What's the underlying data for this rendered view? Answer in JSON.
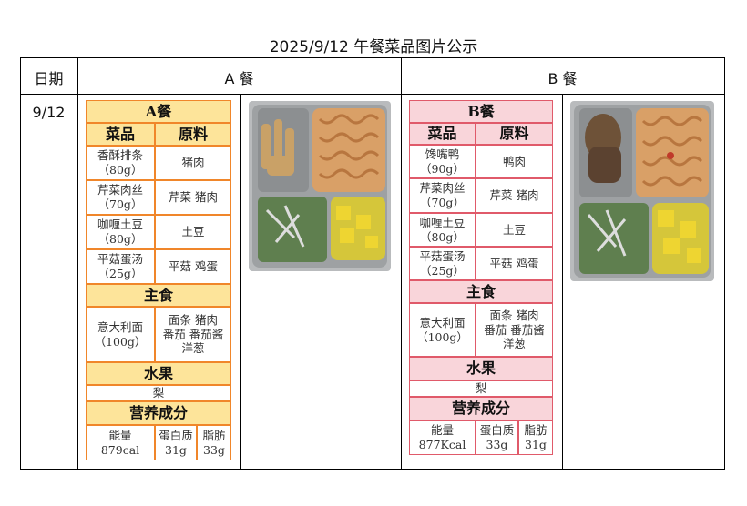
{
  "title": "2025/9/12 午餐菜品图片公示",
  "header": {
    "date": "日期",
    "meal_a": "A 餐",
    "meal_b": "B 餐"
  },
  "date": "9/12",
  "menus": [
    {
      "id": "a",
      "border_color": "#f0862a",
      "header_fill": "#fde49a",
      "title": "A餐",
      "col_dish": "菜品",
      "col_ingredients": "原料",
      "dishes": [
        {
          "name": "香酥排条\n（80g）",
          "ingredients": "猪肉"
        },
        {
          "name": "芹菜肉丝\n（70g）",
          "ingredients": "芹菜  猪肉"
        },
        {
          "name": "咖喱土豆\n（80g）",
          "ingredients": "土豆"
        },
        {
          "name": "平菇蛋汤\n（25g）",
          "ingredients": "平菇  鸡蛋"
        }
      ],
      "staple_title": "主食",
      "staple": {
        "name": "意大利面\n（100g）",
        "ingredients": "面条  猪肉\n番茄  番茄酱\n洋葱"
      },
      "fruit_title": "水果",
      "fruit": "梨",
      "nutrition_title": "营养成分",
      "nutrition": [
        {
          "label": "能量",
          "value": "879cal"
        },
        {
          "label": "蛋白质",
          "value": "31g"
        },
        {
          "label": "脂肪",
          "value": "33g"
        }
      ]
    },
    {
      "id": "b",
      "border_color": "#e05a6a",
      "header_fill": "#f9d5da",
      "title": "B餐",
      "col_dish": "菜品",
      "col_ingredients": "原料",
      "dishes": [
        {
          "name": "馋嘴鸭\n（90g）",
          "ingredients": "鸭肉"
        },
        {
          "name": "芹菜肉丝\n（70g）",
          "ingredients": "芹菜  猪肉"
        },
        {
          "name": "咖喱土豆\n（80g）",
          "ingredients": "土豆"
        },
        {
          "name": "平菇蛋汤\n（25g）",
          "ingredients": "平菇  鸡蛋"
        }
      ],
      "staple_title": "主食",
      "staple": {
        "name": "意大利面\n（100g）",
        "ingredients": "面条  猪肉\n番茄  番茄酱\n洋葱"
      },
      "fruit_title": "水果",
      "fruit": "梨",
      "nutrition_title": "营养成分",
      "nutrition": [
        {
          "label": "能量",
          "value": "877Kcal"
        },
        {
          "label": "蛋白质",
          "value": "33g"
        },
        {
          "label": "脂肪",
          "value": "31g"
        }
      ]
    }
  ]
}
